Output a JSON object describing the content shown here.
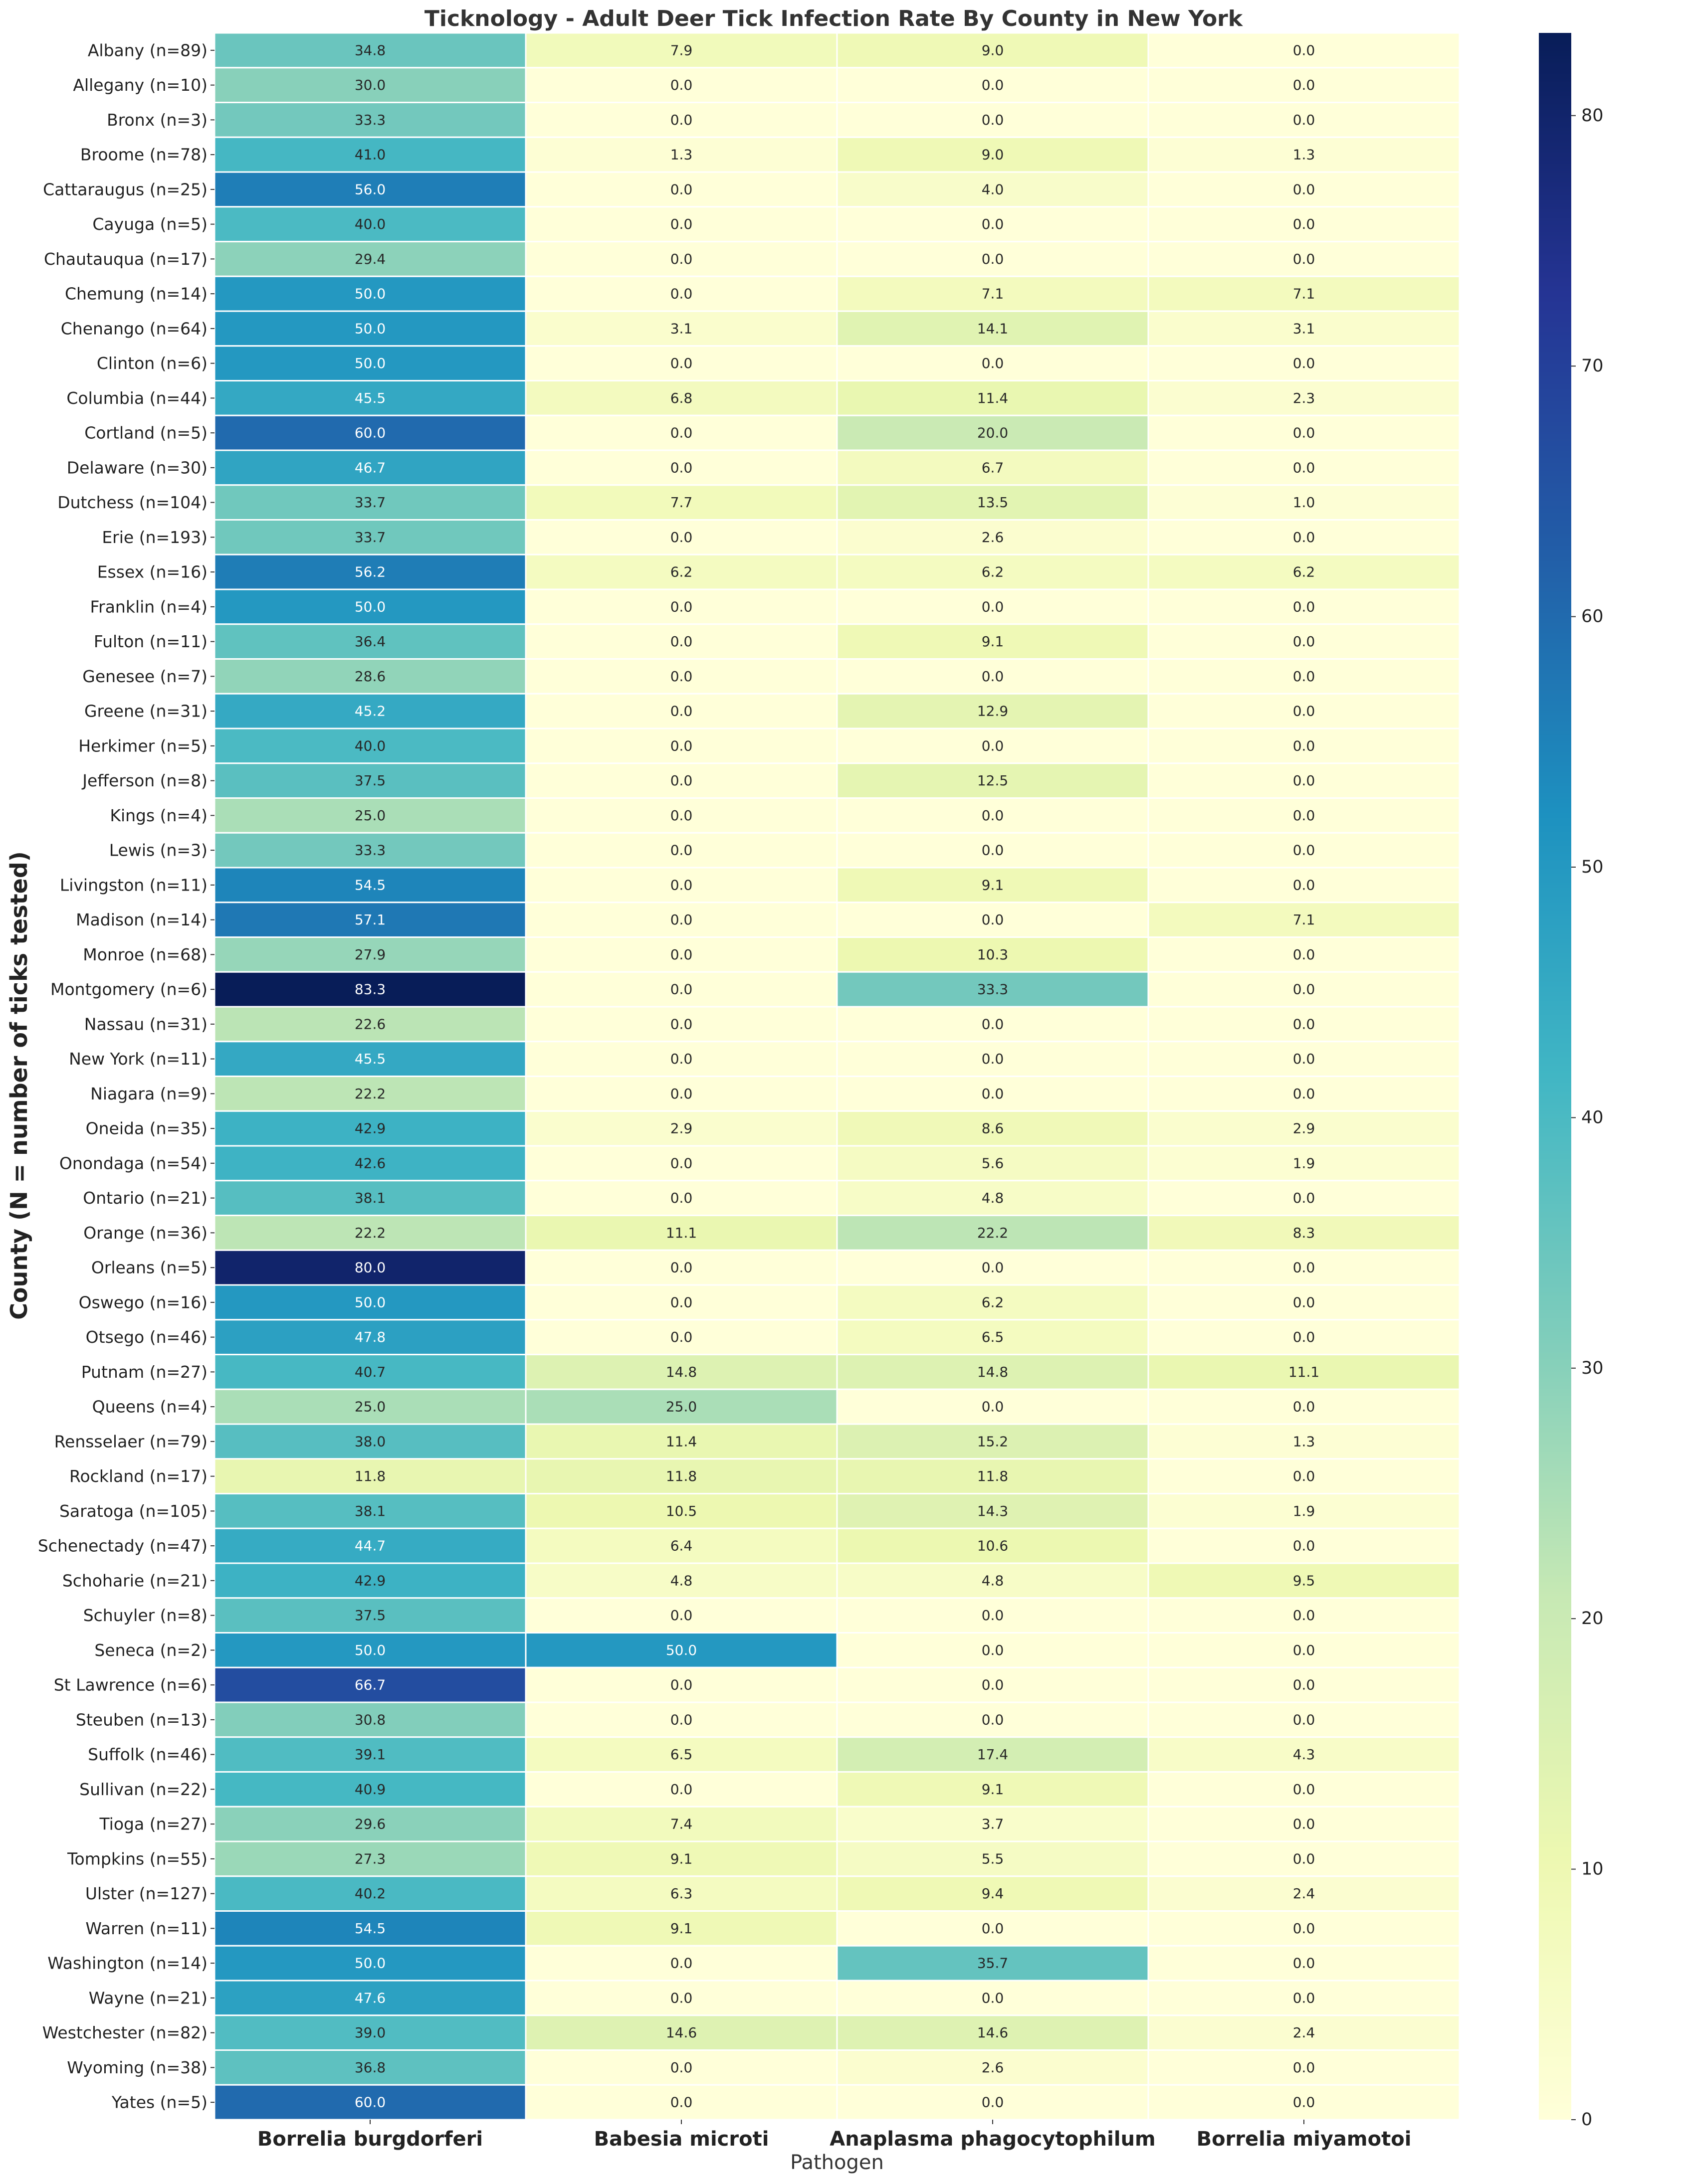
{
  "chart_data": {
    "type": "heatmap",
    "title": "Ticknology - Adult Deer Tick Infection Rate By County in New York",
    "xlabel": "Pathogen",
    "ylabel": "County (N = number of ticks tested)",
    "columns": [
      "Borrelia burgdorferi",
      "Babesia microti",
      "Anaplasma phagocytophilum",
      "Borrelia miyamotoi"
    ],
    "rows": [
      "Albany (n=89)",
      "Allegany (n=10)",
      "Bronx (n=3)",
      "Broome (n=78)",
      "Cattaraugus (n=25)",
      "Cayuga (n=5)",
      "Chautauqua (n=17)",
      "Chemung (n=14)",
      "Chenango (n=64)",
      "Clinton (n=6)",
      "Columbia (n=44)",
      "Cortland (n=5)",
      "Delaware (n=30)",
      "Dutchess (n=104)",
      "Erie (n=193)",
      "Essex (n=16)",
      "Franklin (n=4)",
      "Fulton (n=11)",
      "Genesee (n=7)",
      "Greene (n=31)",
      "Herkimer (n=5)",
      "Jefferson (n=8)",
      "Kings (n=4)",
      "Lewis (n=3)",
      "Livingston (n=11)",
      "Madison (n=14)",
      "Monroe (n=68)",
      "Montgomery (n=6)",
      "Nassau (n=31)",
      "New York (n=11)",
      "Niagara (n=9)",
      "Oneida (n=35)",
      "Onondaga (n=54)",
      "Ontario (n=21)",
      "Orange (n=36)",
      "Orleans (n=5)",
      "Oswego (n=16)",
      "Otsego (n=46)",
      "Putnam (n=27)",
      "Queens (n=4)",
      "Rensselaer (n=79)",
      "Rockland (n=17)",
      "Saratoga (n=105)",
      "Schenectady (n=47)",
      "Schoharie (n=21)",
      "Schuyler (n=8)",
      "Seneca (n=2)",
      "St Lawrence (n=6)",
      "Steuben (n=13)",
      "Suffolk (n=46)",
      "Sullivan (n=22)",
      "Tioga (n=27)",
      "Tompkins (n=55)",
      "Ulster (n=127)",
      "Warren (n=11)",
      "Washington (n=14)",
      "Wayne (n=21)",
      "Westchester (n=82)",
      "Wyoming (n=38)",
      "Yates (n=5)"
    ],
    "values": [
      [
        34.8,
        7.9,
        9.0,
        0.0
      ],
      [
        30.0,
        0.0,
        0.0,
        0.0
      ],
      [
        33.3,
        0.0,
        0.0,
        0.0
      ],
      [
        41.0,
        1.3,
        9.0,
        1.3
      ],
      [
        56.0,
        0.0,
        4.0,
        0.0
      ],
      [
        40.0,
        0.0,
        0.0,
        0.0
      ],
      [
        29.4,
        0.0,
        0.0,
        0.0
      ],
      [
        50.0,
        0.0,
        7.1,
        7.1
      ],
      [
        50.0,
        3.1,
        14.1,
        3.1
      ],
      [
        50.0,
        0.0,
        0.0,
        0.0
      ],
      [
        45.5,
        6.8,
        11.4,
        2.3
      ],
      [
        60.0,
        0.0,
        20.0,
        0.0
      ],
      [
        46.7,
        0.0,
        6.7,
        0.0
      ],
      [
        33.7,
        7.7,
        13.5,
        1.0
      ],
      [
        33.7,
        0.0,
        2.6,
        0.0
      ],
      [
        56.2,
        6.2,
        6.2,
        6.2
      ],
      [
        50.0,
        0.0,
        0.0,
        0.0
      ],
      [
        36.4,
        0.0,
        9.1,
        0.0
      ],
      [
        28.6,
        0.0,
        0.0,
        0.0
      ],
      [
        45.2,
        0.0,
        12.9,
        0.0
      ],
      [
        40.0,
        0.0,
        0.0,
        0.0
      ],
      [
        37.5,
        0.0,
        12.5,
        0.0
      ],
      [
        25.0,
        0.0,
        0.0,
        0.0
      ],
      [
        33.3,
        0.0,
        0.0,
        0.0
      ],
      [
        54.5,
        0.0,
        9.1,
        0.0
      ],
      [
        57.1,
        0.0,
        0.0,
        7.1
      ],
      [
        27.9,
        0.0,
        10.3,
        0.0
      ],
      [
        83.3,
        0.0,
        33.3,
        0.0
      ],
      [
        22.6,
        0.0,
        0.0,
        0.0
      ],
      [
        45.5,
        0.0,
        0.0,
        0.0
      ],
      [
        22.2,
        0.0,
        0.0,
        0.0
      ],
      [
        42.9,
        2.9,
        8.6,
        2.9
      ],
      [
        42.6,
        0.0,
        5.6,
        1.9
      ],
      [
        38.1,
        0.0,
        4.8,
        0.0
      ],
      [
        22.2,
        11.1,
        22.2,
        8.3
      ],
      [
        80.0,
        0.0,
        0.0,
        0.0
      ],
      [
        50.0,
        0.0,
        6.2,
        0.0
      ],
      [
        47.8,
        0.0,
        6.5,
        0.0
      ],
      [
        40.7,
        14.8,
        14.8,
        11.1
      ],
      [
        25.0,
        25.0,
        0.0,
        0.0
      ],
      [
        38.0,
        11.4,
        15.2,
        1.3
      ],
      [
        11.8,
        11.8,
        11.8,
        0.0
      ],
      [
        38.1,
        10.5,
        14.3,
        1.9
      ],
      [
        44.7,
        6.4,
        10.6,
        0.0
      ],
      [
        42.9,
        4.8,
        4.8,
        9.5
      ],
      [
        37.5,
        0.0,
        0.0,
        0.0
      ],
      [
        50.0,
        50.0,
        0.0,
        0.0
      ],
      [
        66.7,
        0.0,
        0.0,
        0.0
      ],
      [
        30.8,
        0.0,
        0.0,
        0.0
      ],
      [
        39.1,
        6.5,
        17.4,
        4.3
      ],
      [
        40.9,
        0.0,
        9.1,
        0.0
      ],
      [
        29.6,
        7.4,
        3.7,
        0.0
      ],
      [
        27.3,
        9.1,
        5.5,
        0.0
      ],
      [
        40.2,
        6.3,
        9.4,
        2.4
      ],
      [
        54.5,
        9.1,
        0.0,
        0.0
      ],
      [
        50.0,
        0.0,
        35.7,
        0.0
      ],
      [
        47.6,
        0.0,
        0.0,
        0.0
      ],
      [
        39.0,
        14.6,
        14.6,
        2.4
      ],
      [
        36.8,
        0.0,
        2.6,
        0.0
      ],
      [
        60.0,
        0.0,
        0.0,
        0.0
      ]
    ],
    "value_format": "1 decimal",
    "colormap": "YlGnBu",
    "colormap_stops": [
      "#ffffd9",
      "#edf8b1",
      "#c7e9b4",
      "#7fcdbb",
      "#41b6c4",
      "#1d91c0",
      "#225ea8",
      "#253494",
      "#081d58"
    ],
    "colorbar": {
      "min": 0,
      "max": 83.3,
      "ticks": [
        0,
        10,
        20,
        30,
        40,
        50,
        60,
        70,
        80
      ]
    },
    "cell_border_color": "#ffffff",
    "grid": false,
    "legend": "colorbar-right"
  }
}
